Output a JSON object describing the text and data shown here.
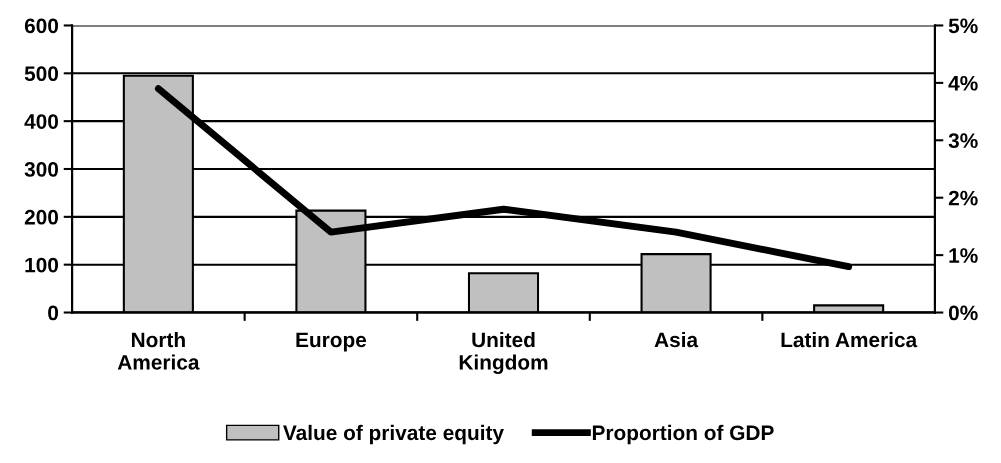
{
  "chart_data": {
    "type": "bar",
    "categories": [
      "North\nAmerica",
      "Europe",
      "United\nKingdom",
      "Asia",
      "Latin America"
    ],
    "series": [
      {
        "name": "Value of private equity",
        "color": "#c0c0c0",
        "values": [
          495,
          213,
          82,
          122,
          15
        ]
      },
      {
        "name": "Proportion of GDP",
        "type": "line",
        "axis": "y2",
        "color": "#000000",
        "values": [
          3.9,
          1.4,
          1.8,
          1.4,
          0.8
        ]
      }
    ],
    "ylim": [
      0,
      600
    ],
    "yticks": [
      0,
      100,
      200,
      300,
      400,
      500,
      600
    ],
    "y2lim": [
      0,
      5
    ],
    "y2ticks": [
      {
        "value": 0,
        "label": "0%"
      },
      {
        "value": 1,
        "label": "1%"
      },
      {
        "value": 2,
        "label": "2%"
      },
      {
        "value": 3,
        "label": "3%"
      },
      {
        "value": 4,
        "label": "4%"
      },
      {
        "value": 5,
        "label": "5%"
      }
    ],
    "grid": "y",
    "legend": "bottom",
    "marker": "none",
    "line_style": "solid"
  }
}
